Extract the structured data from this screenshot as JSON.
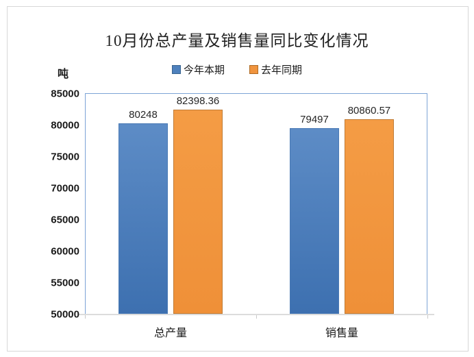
{
  "chart_data": {
    "type": "bar",
    "title": "10月份总产量及销售量同比变化情况",
    "unit_label": "吨",
    "categories": [
      "总产量",
      "销售量"
    ],
    "series": [
      {
        "name": "今年本期",
        "values": [
          80248,
          79497
        ],
        "value_labels": [
          "80248",
          "79497"
        ],
        "fill_top": "#5d8cc6",
        "fill_bottom": "#3d70b0",
        "border": "#4a7ab5",
        "legend_swatch": "#4e81bd",
        "legend_swatch_border": "#39648f"
      },
      {
        "name": "去年同期",
        "values": [
          82398.36,
          80860.57
        ],
        "value_labels": [
          "82398.36",
          "80860.57"
        ],
        "fill_top": "#f49c45",
        "fill_bottom": "#ef9038",
        "border": "#c07b35",
        "legend_swatch": "#f0943e",
        "legend_swatch_border": "#ad6a24"
      }
    ],
    "ylim": [
      50000,
      85000
    ],
    "ytick_step": 5000,
    "ytick_labels": [
      "85000",
      "80000",
      "75000",
      "70000",
      "65000",
      "60000",
      "55000",
      "50000"
    ],
    "grid": false,
    "legend_position": "top",
    "colors": {
      "plot_border": "#7ca3d6",
      "axis_line": "#dcdcdc",
      "tick": "#c9c9c9",
      "frame_border": "#d7d7d7",
      "text": "#1f1f1f"
    }
  }
}
